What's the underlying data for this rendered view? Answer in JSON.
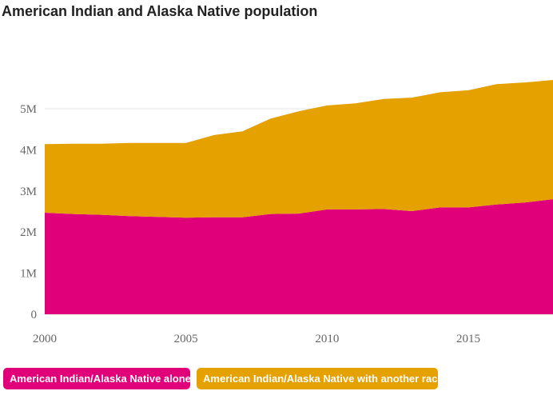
{
  "chart_data": {
    "type": "area",
    "stacked": true,
    "title": "American Indian and Alaska Native population",
    "x": [
      2000,
      2001,
      2002,
      2003,
      2004,
      2005,
      2006,
      2007,
      2008,
      2009,
      2010,
      2011,
      2012,
      2013,
      2014,
      2015,
      2016,
      2017,
      2018
    ],
    "series": [
      {
        "name": "American Indian/Alaska Native alone",
        "color": "#e0007a",
        "values": [
          2.47,
          2.44,
          2.42,
          2.39,
          2.37,
          2.35,
          2.36,
          2.36,
          2.44,
          2.45,
          2.55,
          2.55,
          2.56,
          2.51,
          2.6,
          2.6,
          2.67,
          2.72,
          2.8
        ]
      },
      {
        "name": "American Indian/Alaska Native with another race",
        "color": "#e5a100",
        "values": [
          1.67,
          1.71,
          1.73,
          1.78,
          1.8,
          1.82,
          2.0,
          2.09,
          2.32,
          2.49,
          2.53,
          2.58,
          2.68,
          2.76,
          2.8,
          2.85,
          2.93,
          2.92,
          2.9
        ]
      }
    ],
    "ylim": [
      0,
      6
    ],
    "yticks": [
      0,
      1,
      2,
      3,
      4,
      5
    ],
    "ytick_labels": [
      "0",
      "1M",
      "2M",
      "3M",
      "4M",
      "5M"
    ],
    "xticks": [
      2000,
      2005,
      2010,
      2015
    ],
    "xtick_labels": [
      "2000",
      "2005",
      "2010",
      "2015"
    ],
    "xlim": [
      2000,
      2018
    ],
    "grid": "horizontal",
    "legend_position": "bottom-left"
  }
}
